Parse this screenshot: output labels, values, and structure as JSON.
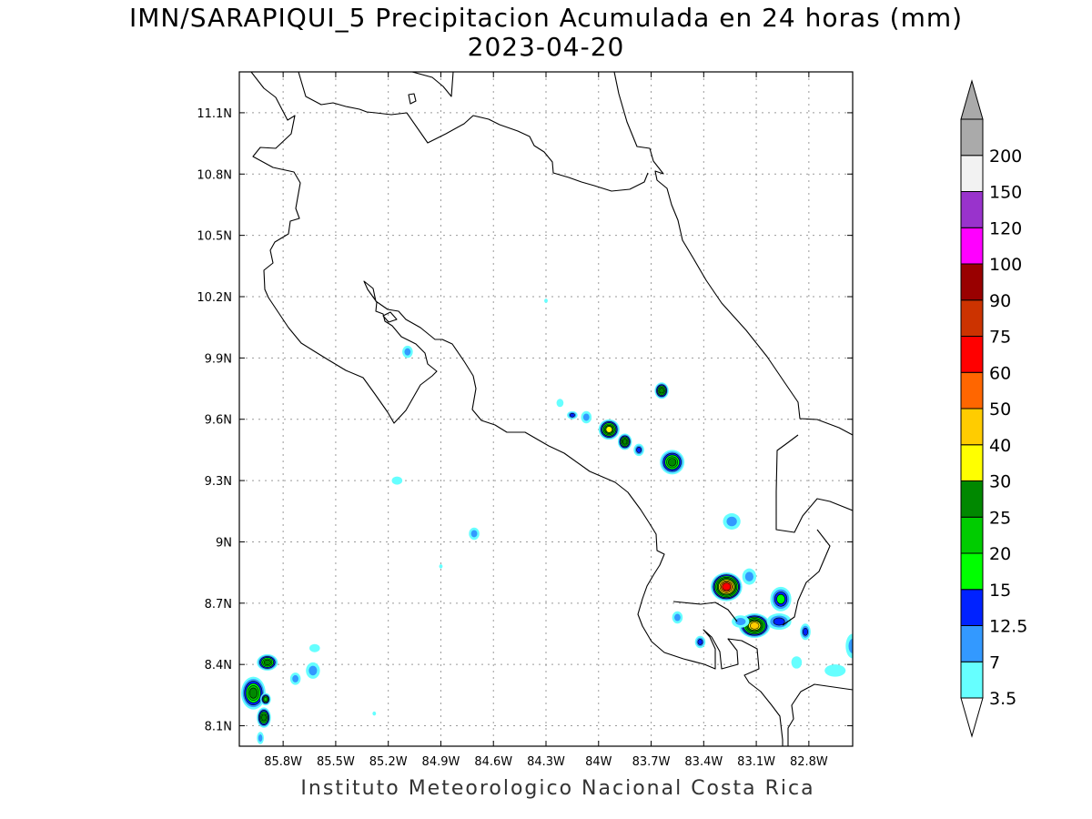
{
  "title": {
    "line1": "IMN/SARAPIQUI_5 Precipitacion Acumulada en 24 horas (mm)",
    "line2": "2023-04-20"
  },
  "footer": "Instituto Meteorologico Nacional Costa Rica",
  "map": {
    "lon_range": [
      -86.05,
      -82.55
    ],
    "lat_range": [
      8.0,
      11.3
    ],
    "lon_ticks": [
      {
        "value": -85.8,
        "label": "85.8W"
      },
      {
        "value": -85.5,
        "label": "85.5W"
      },
      {
        "value": -85.2,
        "label": "85.2W"
      },
      {
        "value": -84.9,
        "label": "84.9W"
      },
      {
        "value": -84.6,
        "label": "84.6W"
      },
      {
        "value": -84.3,
        "label": "84.3W"
      },
      {
        "value": -84.0,
        "label": "84W"
      },
      {
        "value": -83.7,
        "label": "83.7W"
      },
      {
        "value": -83.4,
        "label": "83.4W"
      },
      {
        "value": -83.1,
        "label": "83.1W"
      },
      {
        "value": -82.8,
        "label": "82.8W"
      }
    ],
    "lat_ticks": [
      {
        "value": 8.1,
        "label": "8.1N"
      },
      {
        "value": 8.4,
        "label": "8.4N"
      },
      {
        "value": 8.7,
        "label": "8.7N"
      },
      {
        "value": 9.0,
        "label": "9N"
      },
      {
        "value": 9.3,
        "label": "9.3N"
      },
      {
        "value": 9.6,
        "label": "9.6N"
      },
      {
        "value": 9.9,
        "label": "9.9N"
      },
      {
        "value": 10.2,
        "label": "10.2N"
      },
      {
        "value": 10.5,
        "label": "10.5N"
      },
      {
        "value": 10.8,
        "label": "10.8N"
      },
      {
        "value": 11.1,
        "label": "11.1N"
      }
    ],
    "grid": true
  },
  "colorbar": {
    "levels": [
      {
        "label": "3.5",
        "color": "#66ffff"
      },
      {
        "label": "7",
        "color": "#3399ff"
      },
      {
        "label": "12.5",
        "color": "#0022ff"
      },
      {
        "label": "15",
        "color": "#00ff00"
      },
      {
        "label": "20",
        "color": "#00cc00"
      },
      {
        "label": "25",
        "color": "#008800"
      },
      {
        "label": "30",
        "color": "#ffff00"
      },
      {
        "label": "40",
        "color": "#ffcc00"
      },
      {
        "label": "50",
        "color": "#ff6600"
      },
      {
        "label": "60",
        "color": "#ff0000"
      },
      {
        "label": "75",
        "color": "#cc3300"
      },
      {
        "label": "90",
        "color": "#990000"
      },
      {
        "label": "100",
        "color": "#ff00ff"
      },
      {
        "label": "120",
        "color": "#9933cc"
      },
      {
        "label": "150",
        "color": "#f2f2f2"
      },
      {
        "label": "200",
        "color": "#aaaaaa"
      }
    ],
    "bottom_arrow_color": "#ffffff",
    "top_arrow_color": "#aaaaaa"
  },
  "precip_cells": [
    {
      "lon": -83.27,
      "lat": 8.78,
      "rx": 0.09,
      "ry": 0.07,
      "peak": 60
    },
    {
      "lon": -83.11,
      "lat": 8.59,
      "rx": 0.09,
      "ry": 0.06,
      "peak": 40
    },
    {
      "lon": -82.96,
      "lat": 8.72,
      "rx": 0.06,
      "ry": 0.06,
      "peak": 15
    },
    {
      "lon": -83.14,
      "lat": 8.83,
      "rx": 0.04,
      "ry": 0.04,
      "peak": 7
    },
    {
      "lon": -82.97,
      "lat": 8.61,
      "rx": 0.07,
      "ry": 0.04,
      "peak": 12.5
    },
    {
      "lon": -82.82,
      "lat": 8.56,
      "rx": 0.03,
      "ry": 0.04,
      "peak": 12.5
    },
    {
      "lon": -83.19,
      "lat": 8.61,
      "rx": 0.05,
      "ry": 0.03,
      "peak": 7
    },
    {
      "lon": -83.24,
      "lat": 9.1,
      "rx": 0.05,
      "ry": 0.04,
      "peak": 7
    },
    {
      "lon": -83.42,
      "lat": 8.51,
      "rx": 0.03,
      "ry": 0.03,
      "peak": 12.5
    },
    {
      "lon": -83.55,
      "lat": 8.63,
      "rx": 0.03,
      "ry": 0.03,
      "peak": 7
    },
    {
      "lon": -82.55,
      "lat": 8.49,
      "rx": 0.04,
      "ry": 0.06,
      "peak": 7
    },
    {
      "lon": -82.65,
      "lat": 8.37,
      "rx": 0.06,
      "ry": 0.03,
      "peak": 3.5
    },
    {
      "lon": -82.87,
      "lat": 8.41,
      "rx": 0.03,
      "ry": 0.03,
      "peak": 3.5
    },
    {
      "lon": -83.58,
      "lat": 9.39,
      "rx": 0.07,
      "ry": 0.06,
      "peak": 25
    },
    {
      "lon": -83.64,
      "lat": 9.74,
      "rx": 0.04,
      "ry": 0.04,
      "peak": 25
    },
    {
      "lon": -83.94,
      "lat": 9.55,
      "rx": 0.06,
      "ry": 0.05,
      "peak": 30
    },
    {
      "lon": -83.85,
      "lat": 9.49,
      "rx": 0.04,
      "ry": 0.04,
      "peak": 25
    },
    {
      "lon": -83.77,
      "lat": 9.45,
      "rx": 0.03,
      "ry": 0.03,
      "peak": 12.5
    },
    {
      "lon": -84.07,
      "lat": 9.61,
      "rx": 0.03,
      "ry": 0.03,
      "peak": 7
    },
    {
      "lon": -84.15,
      "lat": 9.62,
      "rx": 0.03,
      "ry": 0.02,
      "peak": 12.5
    },
    {
      "lon": -84.22,
      "lat": 9.68,
      "rx": 0.02,
      "ry": 0.02,
      "peak": 3.5
    },
    {
      "lon": -85.09,
      "lat": 9.93,
      "rx": 0.03,
      "ry": 0.03,
      "peak": 7
    },
    {
      "lon": -84.71,
      "lat": 9.04,
      "rx": 0.03,
      "ry": 0.03,
      "peak": 7
    },
    {
      "lon": -85.15,
      "lat": 9.3,
      "rx": 0.03,
      "ry": 0.02,
      "peak": 3.5
    },
    {
      "lon": -84.3,
      "lat": 10.18,
      "rx": 0.01,
      "ry": 0.01,
      "peak": 3.5
    },
    {
      "lon": -84.9,
      "lat": 8.88,
      "rx": 0.01,
      "ry": 0.01,
      "peak": 3.5
    },
    {
      "lon": -85.28,
      "lat": 8.16,
      "rx": 0.01,
      "ry": 0.01,
      "peak": 3.5
    },
    {
      "lon": -85.89,
      "lat": 8.41,
      "rx": 0.06,
      "ry": 0.04,
      "peak": 25
    },
    {
      "lon": -85.63,
      "lat": 8.37,
      "rx": 0.04,
      "ry": 0.04,
      "peak": 7
    },
    {
      "lon": -85.73,
      "lat": 8.33,
      "rx": 0.03,
      "ry": 0.03,
      "peak": 7
    },
    {
      "lon": -85.97,
      "lat": 8.26,
      "rx": 0.07,
      "ry": 0.08,
      "peak": 25
    },
    {
      "lon": -85.91,
      "lat": 8.14,
      "rx": 0.04,
      "ry": 0.05,
      "peak": 25
    },
    {
      "lon": -85.93,
      "lat": 8.04,
      "rx": 0.02,
      "ry": 0.03,
      "peak": 7
    },
    {
      "lon": -85.62,
      "lat": 8.48,
      "rx": 0.03,
      "ry": 0.02,
      "peak": 3.5
    },
    {
      "lon": -85.9,
      "lat": 8.23,
      "rx": 0.03,
      "ry": 0.03,
      "peak": 20
    }
  ]
}
